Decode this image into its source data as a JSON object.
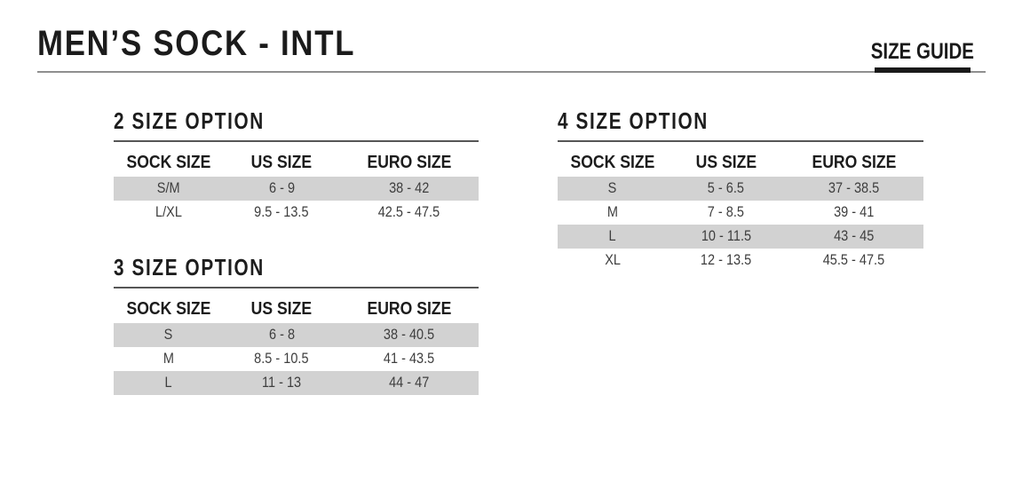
{
  "page": {
    "title": "MEN’S SOCK - INTL",
    "size_guide_label": "SIZE GUIDE"
  },
  "columns": [
    "SOCK SIZE",
    "US SIZE",
    "EURO SIZE"
  ],
  "tables": [
    {
      "heading": "2 SIZE OPTION",
      "rows": [
        [
          "S/M",
          "6 - 9",
          "38 - 42"
        ],
        [
          "L/XL",
          "9.5 - 13.5",
          "42.5 - 47.5"
        ]
      ]
    },
    {
      "heading": "3 SIZE OPTION",
      "rows": [
        [
          "S",
          "6 - 8",
          "38 - 40.5"
        ],
        [
          "M",
          "8.5 - 10.5",
          "41 - 43.5"
        ],
        [
          "L",
          "11 - 13",
          "44 - 47"
        ]
      ]
    },
    {
      "heading": "4 SIZE OPTION",
      "rows": [
        [
          "S",
          "5 - 6.5",
          "37 - 38.5"
        ],
        [
          "M",
          "7 - 8.5",
          "39 - 41"
        ],
        [
          "L",
          "10 - 11.5",
          "43 - 45"
        ],
        [
          "XL",
          "12 - 13.5",
          "45.5 - 47.5"
        ]
      ]
    }
  ],
  "colors": {
    "title_text": "#1b1b1b",
    "heading_text": "#1d1d1d",
    "cell_text": "#3e3e3e",
    "row_shade": "#d2d2d2",
    "rule_gray": "#8f8f8f",
    "accent_black": "#1a1a1a"
  }
}
